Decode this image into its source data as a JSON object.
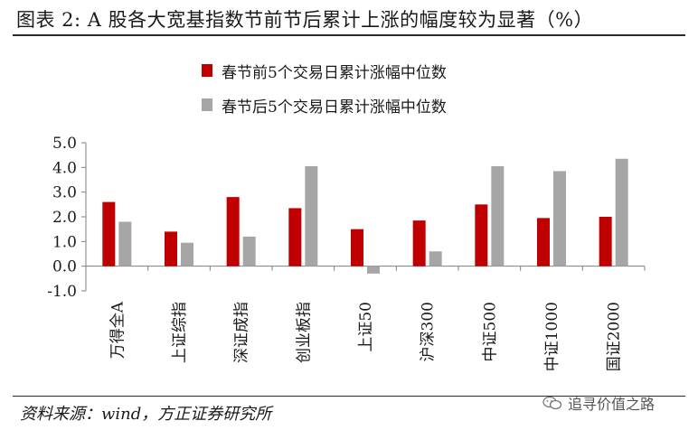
{
  "header": {
    "title": "图表 2: A 股各大宽基指数节前节后累计上涨的幅度较为显著（%）"
  },
  "footer": {
    "source": "资料来源：wind，方正证券研究所",
    "watermark": "追寻价值之路",
    "watermark_icon": "wechat-icon"
  },
  "colors": {
    "before": "#c00000",
    "after": "#a6a6a6",
    "axis": "#7f7f7f"
  },
  "chart_data": {
    "type": "bar",
    "categories": [
      "万得全A",
      "上证综指",
      "深证成指",
      "创业板指",
      "上证50",
      "沪深300",
      "中证500",
      "中证1000",
      "国证2000"
    ],
    "series": [
      {
        "name": "春节前5个交易日累计涨幅中位数",
        "values": [
          2.6,
          1.4,
          2.8,
          2.35,
          1.5,
          1.85,
          2.5,
          1.95,
          2.0
        ]
      },
      {
        "name": "春节后5个交易日累计涨幅中位数",
        "values": [
          1.8,
          0.95,
          1.2,
          4.05,
          -0.3,
          0.6,
          4.05,
          3.85,
          4.35
        ]
      }
    ],
    "yticks": [
      "5.0",
      "4.0",
      "3.0",
      "2.0",
      "1.0",
      "0.0",
      "-1.0"
    ],
    "ylim": [
      -1.0,
      5.0
    ],
    "legend_position": "top-left",
    "grid": false
  }
}
